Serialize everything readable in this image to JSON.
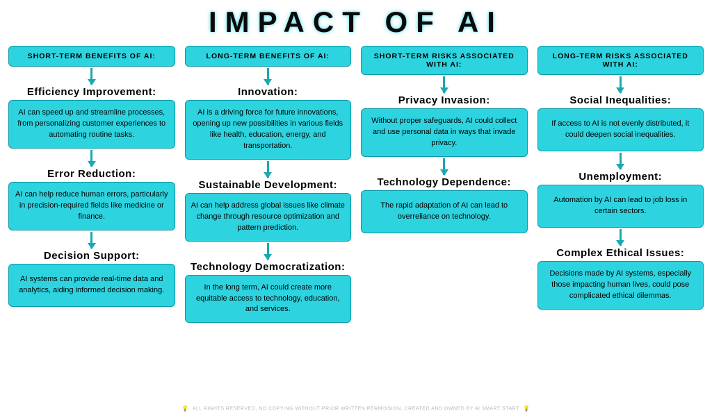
{
  "type": "infographic",
  "layout": "four-column-flowchart",
  "background_color": "#ffffff",
  "box_color": "#2dd4e0",
  "box_border_color": "#0a9aa8",
  "arrow_color": "#1aa8b5",
  "text_color": "#000000",
  "title_glow_color": "#3dd9e8",
  "title": "IMPACT OF AI",
  "title_fontsize": 42,
  "title_letter_spacing": 12,
  "columns": [
    {
      "header": "Short-term benefits of AI:",
      "items": [
        {
          "title": "Efficiency Improvement:",
          "body": "AI can speed up and streamline processes, from personalizing customer experiences to automating routine tasks."
        },
        {
          "title": "Error Reduction:",
          "body": "AI can help reduce human errors, particularly in precision-required fields like medicine or finance."
        },
        {
          "title": "Decision Support:",
          "body": "AI systems can provide real-time data and analytics, aiding informed decision making."
        }
      ]
    },
    {
      "header": "Long-term benefits of AI:",
      "items": [
        {
          "title": "Innovation:",
          "body": "AI is a driving force for future innovations, opening up new possibilities in various fields like health, education, energy, and transportation."
        },
        {
          "title": "Sustainable Development:",
          "body": "AI can help address global issues like climate change through resource optimization and pattern prediction."
        },
        {
          "title": "Technology Democratization:",
          "body": "In the long term, AI could create more equitable access to technology, education, and services."
        }
      ]
    },
    {
      "header": "Short-term risks associated with AI:",
      "items": [
        {
          "title": "Privacy Invasion:",
          "body": "Without proper safeguards, AI could collect and use personal data in ways that invade privacy."
        },
        {
          "title": "Technology Dependence:",
          "body": "The rapid adaptation of AI can lead to overreliance on technology."
        }
      ]
    },
    {
      "header": "Long-term risks associated with AI:",
      "items": [
        {
          "title": "Social Inequalities:",
          "body": "If access to AI is not evenly distributed, it could deepen social inequalities."
        },
        {
          "title": "Unemployment:",
          "body": "Automation by AI can lead to job loss in certain sectors."
        },
        {
          "title": "Complex Ethical Issues:",
          "body": "Decisions made by AI systems, especially those impacting human lives, could pose complicated ethical dilemmas."
        }
      ]
    }
  ],
  "footer_text": "ALL RIGHTS RESERVED, NO COPYING WITHOUT PRIOR WRITTEN PERMISSION, CREATED AND OWNED BY AI SMART START",
  "footer_color": "#b8b8b8",
  "footer_icon": "lightbulb"
}
